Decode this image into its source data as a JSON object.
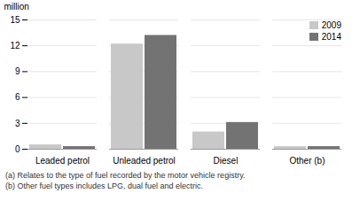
{
  "chart_data": {
    "type": "bar",
    "categories": [
      "Leaded petrol",
      "Unleaded petrol",
      "Diesel",
      "Other (b)"
    ],
    "series": [
      {
        "name": "2009",
        "color": "#c8c8c8",
        "values": [
          0.5,
          12.2,
          2.0,
          0.3
        ]
      },
      {
        "name": "2014",
        "color": "#737373",
        "values": [
          0.3,
          13.2,
          3.1,
          0.3
        ]
      }
    ],
    "ylabel": "million",
    "ylim": [
      0,
      15
    ],
    "yticks": [
      0,
      3,
      6,
      9,
      12,
      15
    ],
    "grid": true,
    "legend": "upper right",
    "annotations": [
      "(a) Relates to the type of fuel recorded by the motor vehicle registry.",
      "(b) Other fuel types includes LPG, dual fuel and electric."
    ]
  }
}
